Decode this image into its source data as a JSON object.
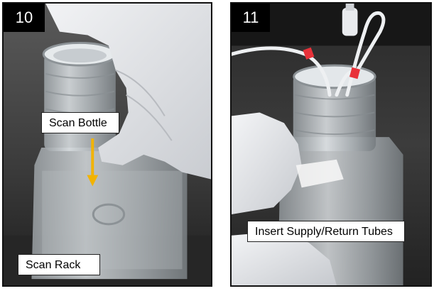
{
  "panels": [
    {
      "step": "10",
      "labels": {
        "scan_bottle": "Scan Bottle",
        "scan_rack": "Scan Rack"
      },
      "arrow_color": "#f2b300"
    },
    {
      "step": "11",
      "labels": {
        "insert_tubes": "Insert Supply/Return Tubes"
      },
      "clip_color": "#e8323a"
    }
  ]
}
